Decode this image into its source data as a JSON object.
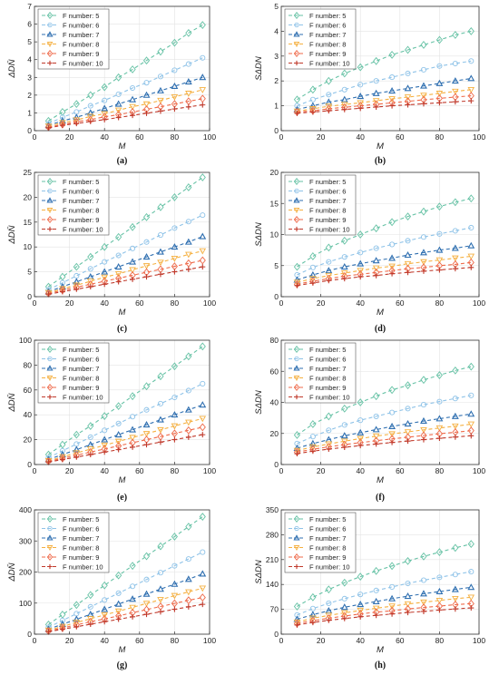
{
  "chart_data": [
    {
      "panel_label": "(a)",
      "type": "line",
      "ylabel": "ΔDN̄",
      "xlabel": "M",
      "xlim": [
        0,
        100
      ],
      "ylim": [
        0,
        7
      ],
      "xticks": [
        "0",
        "20",
        "40",
        "60",
        "80",
        "100"
      ],
      "yticks": [
        "0",
        "1",
        "2",
        "3",
        "4",
        "5",
        "6",
        "7"
      ],
      "legend_position": "top-left",
      "x": [
        8,
        16,
        24,
        32,
        40,
        48,
        56,
        64,
        72,
        80,
        88,
        96
      ],
      "series": [
        {
          "name": "F number: 5",
          "values": [
            0.55,
            1.05,
            1.5,
            2.0,
            2.45,
            3.0,
            3.45,
            3.95,
            4.45,
            4.95,
            5.5,
            5.95
          ]
        },
        {
          "name": "F number: 6",
          "values": [
            0.4,
            0.75,
            1.05,
            1.4,
            1.7,
            2.05,
            2.4,
            2.7,
            3.05,
            3.4,
            3.75,
            4.1
          ]
        },
        {
          "name": "F number: 7",
          "values": [
            0.3,
            0.55,
            0.75,
            1.0,
            1.25,
            1.5,
            1.75,
            2.0,
            2.25,
            2.5,
            2.75,
            3.0
          ]
        },
        {
          "name": "F number: 8",
          "values": [
            0.25,
            0.45,
            0.6,
            0.8,
            0.95,
            1.15,
            1.35,
            1.5,
            1.7,
            1.9,
            2.1,
            2.3
          ]
        },
        {
          "name": "F number: 9",
          "values": [
            0.2,
            0.35,
            0.5,
            0.62,
            0.78,
            0.9,
            1.05,
            1.2,
            1.35,
            1.5,
            1.65,
            1.8
          ]
        },
        {
          "name": "F number: 10",
          "values": [
            0.15,
            0.3,
            0.4,
            0.52,
            0.62,
            0.74,
            0.86,
            0.98,
            1.1,
            1.22,
            1.34,
            1.45
          ]
        }
      ]
    },
    {
      "panel_label": "(b)",
      "type": "line",
      "ylabel": "SΔDN",
      "xlabel": "M",
      "xlim": [
        0,
        100
      ],
      "ylim": [
        0,
        5
      ],
      "xticks": [
        "0",
        "20",
        "40",
        "60",
        "80",
        "100"
      ],
      "yticks": [
        "0",
        "1",
        "2",
        "3",
        "4",
        "5"
      ],
      "legend_position": "top-left",
      "x": [
        8,
        16,
        24,
        32,
        40,
        48,
        56,
        64,
        72,
        80,
        88,
        96
      ],
      "series": [
        {
          "name": "F number: 5",
          "values": [
            1.25,
            1.65,
            2.0,
            2.3,
            2.55,
            2.8,
            3.05,
            3.25,
            3.45,
            3.65,
            3.85,
            4.0
          ]
        },
        {
          "name": "F number: 6",
          "values": [
            1.0,
            1.25,
            1.45,
            1.65,
            1.85,
            2.0,
            2.15,
            2.3,
            2.45,
            2.6,
            2.7,
            2.8
          ]
        },
        {
          "name": "F number: 7",
          "values": [
            0.85,
            1.0,
            1.15,
            1.25,
            1.38,
            1.5,
            1.6,
            1.7,
            1.8,
            1.9,
            2.0,
            2.1
          ]
        },
        {
          "name": "F number: 8",
          "values": [
            0.78,
            0.88,
            0.98,
            1.05,
            1.12,
            1.2,
            1.28,
            1.35,
            1.42,
            1.5,
            1.58,
            1.65
          ]
        },
        {
          "name": "F number: 9",
          "values": [
            0.75,
            0.8,
            0.88,
            0.94,
            1.0,
            1.06,
            1.12,
            1.18,
            1.24,
            1.3,
            1.35,
            1.4
          ]
        },
        {
          "name": "F number: 10",
          "values": [
            0.7,
            0.75,
            0.8,
            0.85,
            0.9,
            0.95,
            1.0,
            1.04,
            1.08,
            1.12,
            1.16,
            1.2
          ]
        }
      ]
    },
    {
      "panel_label": "(c)",
      "type": "line",
      "ylabel": "ΔDN̄",
      "xlabel": "M",
      "xlim": [
        0,
        100
      ],
      "ylim": [
        0,
        25
      ],
      "xticks": [
        "0",
        "20",
        "40",
        "60",
        "80",
        "100"
      ],
      "yticks": [
        "0",
        "5",
        "10",
        "15",
        "20",
        "25"
      ],
      "legend_position": "top-left",
      "x": [
        8,
        16,
        24,
        32,
        40,
        48,
        56,
        64,
        72,
        80,
        88,
        96
      ],
      "series": [
        {
          "name": "F number: 5",
          "values": [
            2.0,
            4.0,
            6.0,
            8.0,
            10.0,
            12.0,
            14.0,
            16.0,
            18.0,
            20.0,
            22.0,
            24.0
          ]
        },
        {
          "name": "F number: 6",
          "values": [
            1.4,
            2.8,
            4.2,
            5.6,
            7.0,
            8.3,
            9.7,
            11.0,
            12.4,
            13.8,
            15.1,
            16.4
          ]
        },
        {
          "name": "F number: 7",
          "values": [
            1.0,
            2.0,
            3.0,
            4.0,
            5.0,
            6.0,
            7.0,
            8.0,
            9.0,
            10.0,
            11.0,
            12.1
          ]
        },
        {
          "name": "F number: 8",
          "values": [
            0.8,
            1.6,
            2.3,
            3.1,
            3.9,
            4.6,
            5.4,
            6.2,
            6.9,
            7.7,
            8.5,
            9.2
          ]
        },
        {
          "name": "F number: 9",
          "values": [
            0.65,
            1.3,
            1.9,
            2.5,
            3.1,
            3.7,
            4.3,
            4.9,
            5.5,
            6.1,
            6.7,
            7.3
          ]
        },
        {
          "name": "F number: 10",
          "values": [
            0.5,
            1.0,
            1.5,
            2.0,
            2.5,
            3.0,
            3.5,
            4.0,
            4.5,
            5.0,
            5.5,
            6.0
          ]
        }
      ]
    },
    {
      "panel_label": "(d)",
      "type": "line",
      "ylabel": "SΔDN",
      "xlabel": "M",
      "xlim": [
        0,
        100
      ],
      "ylim": [
        0,
        20
      ],
      "xticks": [
        "0",
        "20",
        "40",
        "60",
        "80",
        "100"
      ],
      "yticks": [
        "0",
        "5",
        "10",
        "15",
        "20"
      ],
      "legend_position": "top-left",
      "x": [
        8,
        16,
        24,
        32,
        40,
        48,
        56,
        64,
        72,
        80,
        88,
        96
      ],
      "series": [
        {
          "name": "F number: 5",
          "values": [
            4.8,
            6.5,
            7.9,
            9.0,
            10.0,
            11.0,
            12.0,
            12.9,
            13.7,
            14.5,
            15.2,
            15.8
          ]
        },
        {
          "name": "F number: 6",
          "values": [
            3.5,
            4.7,
            5.6,
            6.4,
            7.1,
            7.8,
            8.4,
            9.0,
            9.6,
            10.1,
            10.6,
            11.1
          ]
        },
        {
          "name": "F number: 7",
          "values": [
            2.7,
            3.5,
            4.2,
            4.8,
            5.3,
            5.8,
            6.2,
            6.7,
            7.1,
            7.5,
            7.8,
            8.2
          ]
        },
        {
          "name": "F number: 8",
          "values": [
            2.3,
            2.9,
            3.4,
            3.8,
            4.2,
            4.6,
            4.9,
            5.3,
            5.6,
            5.9,
            6.2,
            6.5
          ]
        },
        {
          "name": "F number: 9",
          "values": [
            2.0,
            2.5,
            2.9,
            3.3,
            3.6,
            3.9,
            4.2,
            4.5,
            4.7,
            5.0,
            5.2,
            5.5
          ]
        },
        {
          "name": "F number: 10",
          "values": [
            1.8,
            2.2,
            2.6,
            2.9,
            3.2,
            3.4,
            3.7,
            3.9,
            4.1,
            4.3,
            4.5,
            4.7
          ]
        }
      ]
    },
    {
      "panel_label": "(e)",
      "type": "line",
      "ylabel": "ΔDN̄",
      "xlabel": "M",
      "xlim": [
        0,
        100
      ],
      "ylim": [
        0,
        100
      ],
      "xticks": [
        "0",
        "20",
        "40",
        "60",
        "80",
        "100"
      ],
      "yticks": [
        "0",
        "20",
        "40",
        "60",
        "80",
        "100"
      ],
      "legend_position": "top-left",
      "x": [
        8,
        16,
        24,
        32,
        40,
        48,
        56,
        64,
        72,
        80,
        88,
        96
      ],
      "series": [
        {
          "name": "F number: 5",
          "values": [
            8,
            16,
            24,
            31,
            39,
            47,
            55,
            63,
            71,
            79,
            87,
            95
          ]
        },
        {
          "name": "F number: 6",
          "values": [
            5.5,
            11,
            16.5,
            22,
            27.5,
            33,
            38.5,
            44,
            49,
            54,
            59.5,
            65
          ]
        },
        {
          "name": "F number: 7",
          "values": [
            4,
            8,
            12,
            16,
            20,
            24,
            28,
            32,
            36,
            40,
            44,
            48
          ]
        },
        {
          "name": "F number: 8",
          "values": [
            3,
            6.2,
            9.3,
            12.4,
            15.5,
            18.6,
            21.7,
            24.8,
            27.9,
            31,
            34,
            37
          ]
        },
        {
          "name": "F number: 9",
          "values": [
            2.5,
            5,
            7.5,
            10,
            12.5,
            15,
            17.5,
            20,
            22.5,
            25,
            27.5,
            30
          ]
        },
        {
          "name": "F number: 10",
          "values": [
            2,
            4,
            6,
            8,
            10,
            12,
            14,
            16,
            18,
            20,
            22,
            24
          ]
        }
      ]
    },
    {
      "panel_label": "(f)",
      "type": "line",
      "ylabel": "SΔDN",
      "xlabel": "M",
      "xlim": [
        0,
        100
      ],
      "ylim": [
        0,
        80
      ],
      "xticks": [
        "0",
        "20",
        "40",
        "60",
        "80",
        "100"
      ],
      "yticks": [
        "0",
        "20",
        "40",
        "60",
        "80"
      ],
      "legend_position": "top-left",
      "x": [
        8,
        16,
        24,
        32,
        40,
        48,
        56,
        64,
        72,
        80,
        88,
        96
      ],
      "series": [
        {
          "name": "F number: 5",
          "values": [
            19,
            26,
            31,
            36,
            40,
            44,
            48,
            51,
            54.5,
            57.5,
            60.5,
            63
          ]
        },
        {
          "name": "F number: 6",
          "values": [
            13.5,
            18,
            22,
            25.5,
            28.5,
            31,
            33.5,
            36,
            38.5,
            40.5,
            42.5,
            44.5
          ]
        },
        {
          "name": "F number: 7",
          "values": [
            10.5,
            13.5,
            16,
            18.5,
            20.5,
            22.5,
            24.5,
            26.2,
            28,
            29.5,
            31,
            32.5
          ]
        },
        {
          "name": "F number: 8",
          "values": [
            9,
            11.3,
            13.2,
            15,
            16.7,
            18.3,
            19.7,
            21,
            22.3,
            23.5,
            24.7,
            26
          ]
        },
        {
          "name": "F number: 9",
          "values": [
            8,
            9.8,
            11.4,
            12.8,
            14.1,
            15.3,
            16.5,
            17.6,
            18.7,
            19.8,
            20.8,
            21.8
          ]
        },
        {
          "name": "F number: 10",
          "values": [
            7,
            8.6,
            9.9,
            11.1,
            12.2,
            13.2,
            14.2,
            15.1,
            16,
            16.9,
            17.7,
            18.5
          ]
        }
      ]
    },
    {
      "panel_label": "(g)",
      "type": "line",
      "ylabel": "ΔDN̄",
      "xlabel": "M",
      "xlim": [
        0,
        100
      ],
      "ylim": [
        0,
        400
      ],
      "xticks": [
        "0",
        "20",
        "40",
        "60",
        "80",
        "100"
      ],
      "yticks": [
        "0",
        "100",
        "200",
        "300",
        "400"
      ],
      "legend_position": "top-left",
      "x": [
        8,
        16,
        24,
        32,
        40,
        48,
        56,
        64,
        72,
        80,
        88,
        96
      ],
      "series": [
        {
          "name": "F number: 5",
          "values": [
            31,
            63,
            94,
            126,
            157,
            189,
            220,
            251,
            283,
            314,
            346,
            378
          ]
        },
        {
          "name": "F number: 6",
          "values": [
            22,
            44,
            66,
            88,
            110,
            132,
            154,
            176,
            198,
            220,
            242,
            264
          ]
        },
        {
          "name": "F number: 7",
          "values": [
            16,
            32,
            48,
            64,
            80,
            97,
            113,
            129,
            145,
            161,
            177,
            194
          ]
        },
        {
          "name": "F number: 8",
          "values": [
            12.5,
            25,
            37.5,
            50,
            62,
            74,
            86,
            99,
            111,
            124,
            136,
            148
          ]
        },
        {
          "name": "F number: 9",
          "values": [
            10,
            20,
            30,
            40,
            49,
            59,
            69,
            79,
            89,
            99,
            109,
            118
          ]
        },
        {
          "name": "F number: 10",
          "values": [
            8,
            16,
            24,
            32,
            40,
            48,
            56,
            64,
            72,
            80,
            88,
            96
          ]
        }
      ]
    },
    {
      "panel_label": "(h)",
      "type": "line",
      "ylabel": "SΔDN",
      "xlabel": "M",
      "xlim": [
        0,
        100
      ],
      "ylim": [
        0,
        350
      ],
      "xticks": [
        "0",
        "20",
        "40",
        "60",
        "80",
        "100"
      ],
      "yticks": [
        "0",
        "70",
        "140",
        "210",
        "280",
        "350"
      ],
      "legend_position": "top-left",
      "x": [
        8,
        16,
        24,
        32,
        40,
        48,
        56,
        64,
        72,
        80,
        88,
        96
      ],
      "series": [
        {
          "name": "F number: 5",
          "values": [
            78,
            104,
            126,
            145,
            162,
            178,
            192,
            206,
            219,
            231,
            243,
            254
          ]
        },
        {
          "name": "F number: 6",
          "values": [
            54,
            72,
            87,
            100,
            112,
            123,
            133,
            143,
            152,
            160,
            168,
            176
          ]
        },
        {
          "name": "F number: 7",
          "values": [
            42,
            55,
            66,
            76,
            84,
            92,
            100,
            107,
            114,
            120,
            126,
            132
          ]
        },
        {
          "name": "F number: 8",
          "values": [
            34,
            45,
            53,
            60,
            67,
            73,
            79,
            85,
            90,
            95,
            100,
            104
          ]
        },
        {
          "name": "F number: 9",
          "values": [
            30,
            38,
            45,
            51,
            57,
            62,
            66,
            71,
            75,
            79,
            83,
            86
          ]
        },
        {
          "name": "F number: 10",
          "values": [
            26,
            33,
            39,
            44,
            49,
            53,
            57,
            61,
            64,
            68,
            71,
            74
          ]
        }
      ]
    }
  ],
  "series_styles": [
    {
      "color": "#66c2a5",
      "marker": "diamond"
    },
    {
      "color": "#8fc3e8",
      "marker": "circle"
    },
    {
      "color": "#2f6fb0",
      "marker": "triangle-up"
    },
    {
      "color": "#f5b041",
      "marker": "triangle-down"
    },
    {
      "color": "#ef6a4a",
      "marker": "diamond"
    },
    {
      "color": "#c0392b",
      "marker": "plus"
    }
  ]
}
